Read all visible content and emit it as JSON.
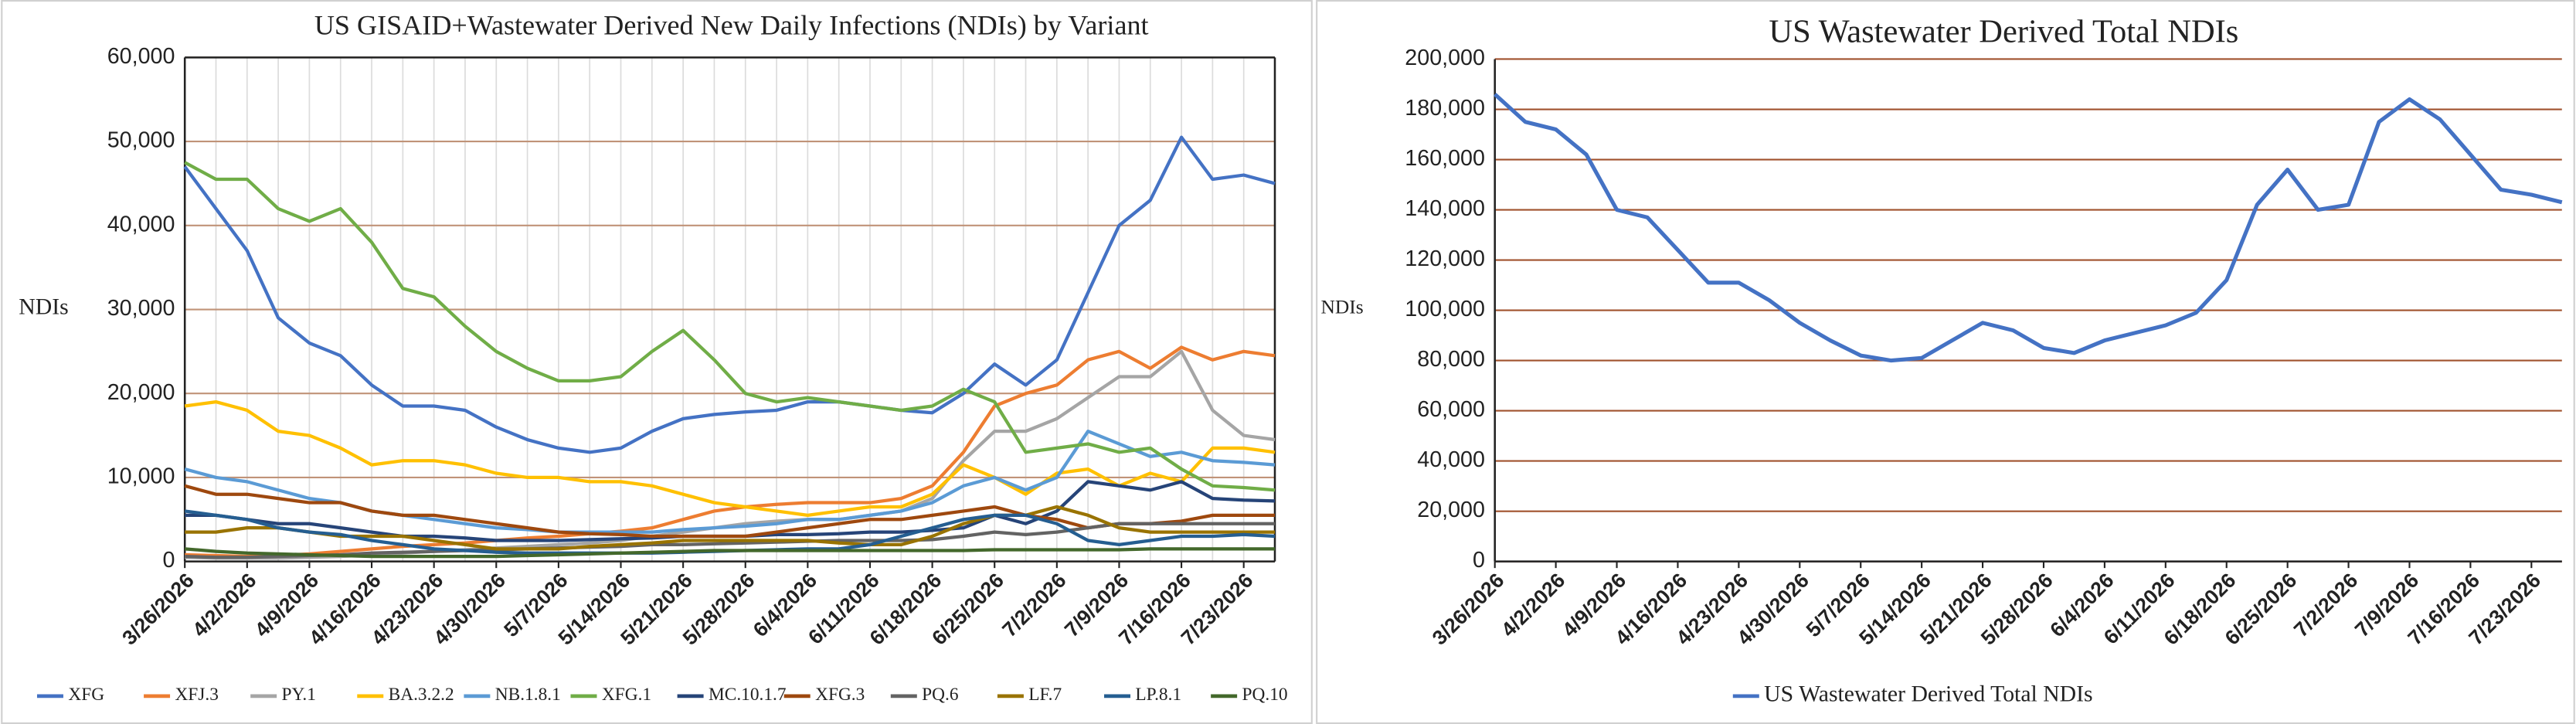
{
  "chart_data": [
    {
      "type": "line",
      "title": "US GISAID+Wastewater Derived New Daily Infections (NDIs) by Variant",
      "y_label": "NDIs",
      "categories": [
        "3/26/2026",
        null,
        "4/2/2026",
        null,
        "4/9/2026",
        null,
        "4/16/2026",
        null,
        "4/23/2026",
        null,
        "4/30/2026",
        null,
        "5/7/2026",
        null,
        "5/14/2026",
        null,
        "5/21/2026",
        null,
        "5/28/2026",
        null,
        "6/4/2026",
        null,
        "6/11/2026",
        null,
        "6/18/2026",
        null,
        "6/25/2026",
        null,
        "7/2/2026",
        null,
        "7/9/2026",
        null,
        "7/16/2026",
        null,
        "7/23/2026",
        null
      ],
      "ylim": [
        0,
        60000
      ],
      "yticks": [
        0,
        {
          "value": 10000,
          "label": "10,000"
        },
        {
          "value": 20000,
          "label": "20,000"
        },
        {
          "value": 30000,
          "label": "30,000"
        },
        {
          "value": 40000,
          "label": "40,000"
        },
        {
          "value": 50000,
          "label": "50,000"
        },
        {
          "value": 60000,
          "label": "60,000"
        }
      ],
      "grid": true,
      "grid_color": "#c09378",
      "xgrid": true,
      "legend": "bottom",
      "series": [
        {
          "name": "XFG",
          "color": "#4472c4",
          "values": [
            47000,
            42000,
            37000,
            29000,
            26000,
            24500,
            21000,
            18500,
            18500,
            18000,
            16000,
            14500,
            13500,
            13000,
            13500,
            15500,
            17000,
            17500,
            17800,
            18000,
            19000,
            19000,
            18500,
            18000,
            17700,
            20000,
            23500,
            21000,
            24000,
            32000,
            40000,
            43000,
            50500,
            45500,
            46000,
            45000
          ]
        },
        {
          "name": "XFJ.3",
          "color": "#ed7d31",
          "values": [
            800,
            700,
            600,
            700,
            900,
            1200,
            1500,
            1800,
            2000,
            2200,
            2500,
            2800,
            3000,
            3300,
            3600,
            4000,
            5000,
            6000,
            6500,
            6800,
            7000,
            7000,
            7000,
            7500,
            9000,
            13000,
            18500,
            20000,
            21000,
            24000,
            25000,
            23000,
            25500,
            24000,
            25000,
            24500
          ]
        },
        {
          "name": "PY.1",
          "color": "#a5a5a5",
          "values": [
            500,
            400,
            400,
            400,
            500,
            600,
            800,
            1000,
            1200,
            1400,
            1600,
            1800,
            2000,
            2200,
            2500,
            3000,
            3500,
            4000,
            4500,
            4800,
            5000,
            5000,
            5500,
            6000,
            7500,
            12000,
            15500,
            15500,
            17000,
            19500,
            22000,
            22000,
            25000,
            18000,
            15000,
            14500
          ]
        },
        {
          "name": "BA.3.2.2",
          "color": "#ffc000",
          "values": [
            18500,
            19000,
            18000,
            15500,
            15000,
            13500,
            11500,
            12000,
            12000,
            11500,
            10500,
            10000,
            10000,
            9500,
            9500,
            9000,
            8000,
            7000,
            6500,
            6000,
            5500,
            6000,
            6500,
            6500,
            8000,
            11500,
            10000,
            8000,
            10500,
            11000,
            9000,
            10500,
            9500,
            13500,
            13500,
            13000
          ]
        },
        {
          "name": "NB.1.8.1",
          "color": "#5b9bd5",
          "values": [
            11000,
            10000,
            9500,
            8500,
            7500,
            7000,
            6000,
            5500,
            5000,
            4500,
            4000,
            3800,
            3500,
            3500,
            3500,
            3500,
            3800,
            4000,
            4200,
            4500,
            5000,
            5000,
            5500,
            6000,
            7000,
            9000,
            10000,
            8500,
            10000,
            15500,
            14000,
            12500,
            13000,
            12000,
            11800,
            11500
          ]
        },
        {
          "name": "XFG.1",
          "color": "#70ad47",
          "values": [
            47500,
            45500,
            45500,
            42000,
            40500,
            42000,
            38000,
            32500,
            31500,
            28000,
            25000,
            23000,
            21500,
            21500,
            22000,
            25000,
            27500,
            24000,
            20000,
            19000,
            19500,
            19000,
            18500,
            18000,
            18500,
            20500,
            19000,
            13000,
            13500,
            14000,
            13000,
            13500,
            11000,
            9000,
            8800,
            8500
          ]
        },
        {
          "name": "MC.10.1.7",
          "color": "#264478",
          "values": [
            5500,
            5500,
            5000,
            4500,
            4500,
            4000,
            3500,
            3000,
            3000,
            2800,
            2500,
            2500,
            2500,
            2600,
            2700,
            2800,
            3000,
            3000,
            3000,
            3200,
            3200,
            3300,
            3500,
            3500,
            3700,
            4000,
            5500,
            4500,
            6000,
            9500,
            9000,
            8500,
            9500,
            7500,
            7300,
            7200
          ]
        },
        {
          "name": "XFG.3",
          "color": "#9e480e",
          "values": [
            9000,
            8000,
            8000,
            7500,
            7000,
            7000,
            6000,
            5500,
            5500,
            5000,
            4500,
            4000,
            3500,
            3300,
            3200,
            3000,
            3000,
            3000,
            3000,
            3500,
            4000,
            4500,
            5000,
            5000,
            5500,
            6000,
            6500,
            5500,
            5000,
            4000,
            4500,
            4500,
            4800,
            5500,
            5500,
            5500
          ]
        },
        {
          "name": "PQ.6",
          "color": "#636363",
          "values": [
            600,
            500,
            500,
            600,
            700,
            800,
            1000,
            1100,
            1200,
            1300,
            1400,
            1500,
            1600,
            1700,
            1800,
            2000,
            2000,
            2100,
            2200,
            2300,
            2400,
            2500,
            2500,
            2500,
            2600,
            3000,
            3500,
            3200,
            3500,
            4000,
            4500,
            4500,
            4500,
            4500,
            4500,
            4500
          ]
        },
        {
          "name": "LF.7",
          "color": "#997300",
          "values": [
            3500,
            3500,
            4000,
            4000,
            3500,
            3000,
            3000,
            3000,
            2500,
            2000,
            1500,
            1500,
            1500,
            1800,
            2000,
            2200,
            2500,
            2500,
            2500,
            2500,
            2500,
            2200,
            2000,
            2000,
            3000,
            4500,
            5500,
            5500,
            6500,
            5500,
            4000,
            3500,
            3500,
            3500,
            3500,
            3500
          ]
        },
        {
          "name": "LP.8.1",
          "color": "#255e91",
          "values": [
            6000,
            5500,
            5000,
            4000,
            3500,
            3200,
            2500,
            2000,
            1500,
            1300,
            1100,
            1000,
            1000,
            1000,
            1000,
            1000,
            1100,
            1200,
            1300,
            1400,
            1500,
            1500,
            2000,
            3000,
            4000,
            5000,
            5500,
            5500,
            4500,
            2500,
            2000,
            2500,
            3000,
            3000,
            3200,
            3000
          ]
        },
        {
          "name": "PQ.10",
          "color": "#43682b",
          "values": [
            1500,
            1200,
            1000,
            900,
            800,
            700,
            600,
            600,
            600,
            600,
            600,
            700,
            800,
            900,
            1000,
            1100,
            1200,
            1300,
            1300,
            1300,
            1300,
            1300,
            1300,
            1300,
            1300,
            1300,
            1400,
            1400,
            1400,
            1400,
            1400,
            1500,
            1500,
            1500,
            1500,
            1500
          ]
        }
      ]
    },
    {
      "type": "line",
      "title": "US Wastewater Derived Total NDIs",
      "y_label": "NDIs",
      "categories": [
        "3/26/2026",
        null,
        "4/2/2026",
        null,
        "4/9/2026",
        null,
        "4/16/2026",
        null,
        "4/23/2026",
        null,
        "4/30/2026",
        null,
        "5/7/2026",
        null,
        "5/14/2026",
        null,
        "5/21/2026",
        null,
        "5/28/2026",
        null,
        "6/4/2026",
        null,
        "6/11/2026",
        null,
        "6/18/2026",
        null,
        "6/25/2026",
        null,
        "7/2/2026",
        null,
        "7/9/2026",
        null,
        "7/16/2026",
        null,
        "7/23/2026",
        null
      ],
      "ylim": [
        0,
        200000
      ],
      "yticks": [
        0,
        {
          "value": 20000,
          "label": "20,000"
        },
        {
          "value": 40000,
          "label": "40,000"
        },
        {
          "value": 60000,
          "label": "60,000"
        },
        {
          "value": 80000,
          "label": "80,000"
        },
        {
          "value": 100000,
          "label": "100,000"
        },
        {
          "value": 120000,
          "label": "120,000"
        },
        {
          "value": 140000,
          "label": "140,000"
        },
        {
          "value": 160000,
          "label": "160,000"
        },
        {
          "value": 180000,
          "label": "180,000"
        },
        {
          "value": 200000,
          "label": "200,000"
        }
      ],
      "grid": true,
      "grid_color": "#a0522d",
      "xgrid": false,
      "legend": "bottom",
      "series": [
        {
          "name": "US Wastewater Derived Total NDIs",
          "color": "#4472c4",
          "values": [
            186000,
            175000,
            172000,
            162000,
            140000,
            137000,
            124000,
            111000,
            111000,
            104000,
            95000,
            88000,
            82000,
            80000,
            81000,
            88000,
            95000,
            92000,
            85000,
            83000,
            88000,
            91000,
            94000,
            99000,
            112000,
            142000,
            156000,
            140000,
            142000,
            175000,
            184000,
            176000,
            162000,
            148000,
            146000,
            143000
          ]
        }
      ]
    }
  ]
}
